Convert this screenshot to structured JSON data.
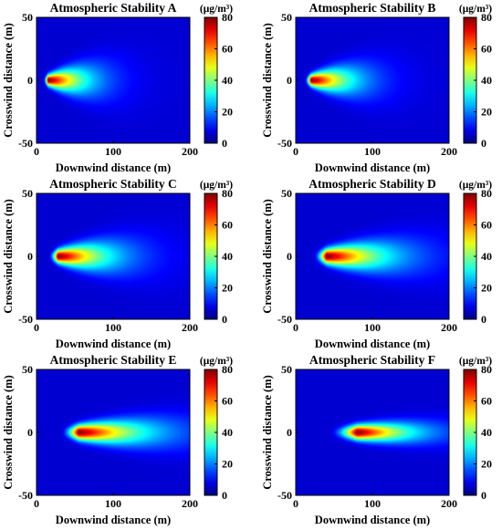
{
  "chart_data": [
    {
      "type": "heatmap",
      "title": "Atmospheric Stability A",
      "xlabel": "Downwind distance (m)",
      "ylabel": "Crosswind distance (m)",
      "colorbar_label": "(μg/m³)",
      "xlim": [
        0,
        200
      ],
      "ylim": [
        -50,
        50
      ],
      "xticks": [
        0,
        100,
        200
      ],
      "yticks": [
        50,
        0,
        -50
      ],
      "clim": [
        0,
        80
      ],
      "colorbar_ticks": [
        80,
        60,
        40,
        20,
        0
      ],
      "colormap": "jet",
      "plume": {
        "peak_x": 15,
        "peak_value": 80,
        "core_length": 10,
        "core_halfwidth": 3,
        "tail_reach_x": 100,
        "spread_halfwidth_at_200": 45
      }
    },
    {
      "type": "heatmap",
      "title": "Atmospheric Stability B",
      "xlabel": "Downwind distance (m)",
      "ylabel": "Crosswind distance (m)",
      "colorbar_label": "(μg/m³)",
      "xlim": [
        0,
        200
      ],
      "ylim": [
        -50,
        50
      ],
      "xticks": [
        0,
        100,
        200
      ],
      "yticks": [
        50,
        0,
        -50
      ],
      "clim": [
        0,
        80
      ],
      "colorbar_ticks": [
        80,
        60,
        40,
        20,
        0
      ],
      "colormap": "jet",
      "plume": {
        "peak_x": 20,
        "peak_value": 80,
        "core_length": 14,
        "core_halfwidth": 3,
        "tail_reach_x": 110,
        "spread_halfwidth_at_200": 40
      }
    },
    {
      "type": "heatmap",
      "title": "Atmospheric Stability C",
      "xlabel": "Downwind distance (m)",
      "ylabel": "Crosswind distance (m)",
      "colorbar_label": "(μg/m³)",
      "xlim": [
        0,
        200
      ],
      "ylim": [
        -50,
        50
      ],
      "xticks": [
        0,
        100,
        200
      ],
      "yticks": [
        50,
        0,
        -50
      ],
      "clim": [
        0,
        80
      ],
      "colorbar_ticks": [
        80,
        60,
        40,
        20,
        0
      ],
      "colormap": "jet",
      "plume": {
        "peak_x": 28,
        "peak_value": 80,
        "core_length": 20,
        "core_halfwidth": 3.5,
        "tail_reach_x": 140,
        "spread_halfwidth_at_200": 33
      }
    },
    {
      "type": "heatmap",
      "title": "Atmospheric Stability D",
      "xlabel": "Downwind distance (m)",
      "ylabel": "Crosswind distance (m)",
      "colorbar_label": "(μg/m³)",
      "xlim": [
        0,
        200
      ],
      "ylim": [
        -50,
        50
      ],
      "xticks": [
        0,
        100,
        200
      ],
      "yticks": [
        50,
        0,
        -50
      ],
      "clim": [
        0,
        80
      ],
      "colorbar_ticks": [
        80,
        60,
        40,
        20,
        0
      ],
      "colormap": "jet",
      "plume": {
        "peak_x": 40,
        "peak_value": 80,
        "core_length": 28,
        "core_halfwidth": 4,
        "tail_reach_x": 170,
        "spread_halfwidth_at_200": 27
      }
    },
    {
      "type": "heatmap",
      "title": "Atmospheric Stability E",
      "xlabel": "Downwind distance (m)",
      "ylabel": "Crosswind distance (m)",
      "colorbar_label": "(μg/m³)",
      "xlim": [
        0,
        200
      ],
      "ylim": [
        -50,
        50
      ],
      "xticks": [
        0,
        100,
        200
      ],
      "yticks": [
        50,
        0,
        -50
      ],
      "clim": [
        0,
        80
      ],
      "colorbar_ticks": [
        80,
        60,
        40,
        20,
        0
      ],
      "colormap": "jet",
      "plume": {
        "peak_x": 55,
        "peak_value": 80,
        "core_length": 40,
        "core_halfwidth": 4,
        "tail_reach_x": 200,
        "spread_halfwidth_at_200": 20
      }
    },
    {
      "type": "heatmap",
      "title": "Atmospheric Stability F",
      "xlabel": "Downwind distance (m)",
      "ylabel": "Crosswind distance (m)",
      "colorbar_label": "(μg/m³)",
      "xlim": [
        0,
        200
      ],
      "ylim": [
        -50,
        50
      ],
      "xticks": [
        0,
        100,
        200
      ],
      "yticks": [
        50,
        0,
        -50
      ],
      "clim": [
        0,
        80
      ],
      "colorbar_ticks": [
        80,
        60,
        40,
        20,
        0
      ],
      "colormap": "jet",
      "plume": {
        "peak_x": 80,
        "peak_value": 80,
        "core_length": 60,
        "core_halfwidth": 4,
        "tail_reach_x": 200,
        "spread_halfwidth_at_200": 14
      }
    }
  ]
}
